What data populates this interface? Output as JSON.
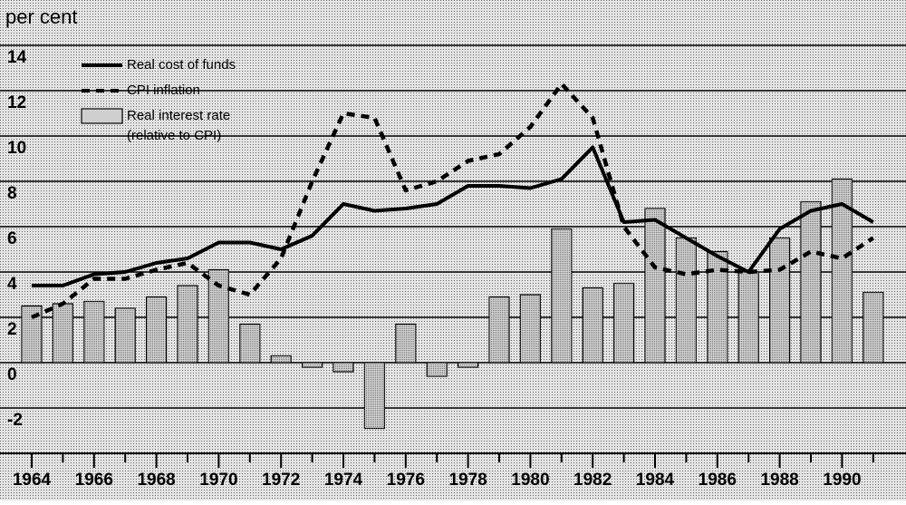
{
  "chart_data": {
    "type": "bar_line",
    "y_axis_label": "per cent",
    "categories": [
      "1964",
      null,
      "1966",
      null,
      "1968",
      null,
      "1970",
      null,
      "1972",
      null,
      "1974",
      null,
      "1976",
      null,
      "1978",
      null,
      "1980",
      null,
      "1982",
      null,
      "1984",
      null,
      "1986",
      null,
      "1988",
      null,
      "1990",
      null
    ],
    "series": [
      {
        "name": "Real cost of funds",
        "kind": "line",
        "style": "solid",
        "color": "#000000",
        "values": [
          3.4,
          3.4,
          3.9,
          4.0,
          4.4,
          4.6,
          5.3,
          5.3,
          5.0,
          5.6,
          7.0,
          6.7,
          6.8,
          7.0,
          7.8,
          7.8,
          7.7,
          8.1,
          9.5,
          6.2,
          6.3,
          5.5,
          4.7,
          4.0,
          5.9,
          6.7,
          7.0,
          6.2
        ]
      },
      {
        "name": "CPI inflation",
        "kind": "line",
        "style": "dashed",
        "color": "#000000",
        "values": [
          2.0,
          2.6,
          3.7,
          3.7,
          4.1,
          4.4,
          3.4,
          3.0,
          4.6,
          8.0,
          11.0,
          10.8,
          7.6,
          8.0,
          8.9,
          9.2,
          10.4,
          12.3,
          10.8,
          6.0,
          4.2,
          3.9,
          4.1,
          4.0,
          4.1,
          4.9,
          4.6,
          5.5
        ]
      },
      {
        "name": "Real interest rate",
        "name_note": "(relative to CPI)",
        "kind": "bar",
        "color": "#cfcfcf",
        "values": [
          2.5,
          2.6,
          2.7,
          2.4,
          2.9,
          3.4,
          4.1,
          1.7,
          0.3,
          -0.2,
          -0.4,
          -2.9,
          1.7,
          -0.6,
          -0.2,
          2.9,
          3.0,
          5.9,
          3.3,
          3.5,
          6.8,
          5.5,
          4.9,
          4.0,
          5.5,
          7.1,
          8.1,
          3.1
        ]
      }
    ],
    "ylim": [
      -4,
      16
    ],
    "yticks": [
      -2,
      0,
      2,
      4,
      6,
      8,
      10,
      12,
      14
    ],
    "grid": true,
    "legend": "upper left"
  }
}
